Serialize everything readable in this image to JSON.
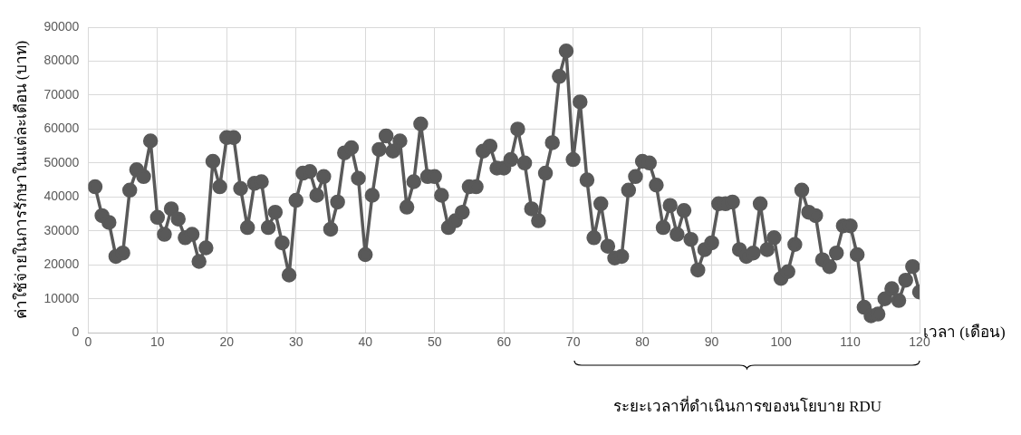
{
  "chart_data": {
    "type": "line",
    "xlabel": "เวลา (เดือน)",
    "ylabel": "ค่าใช้จ่ายในการรักษาในแต่ละเดือน (บาท)",
    "x": [
      1,
      2,
      3,
      4,
      5,
      6,
      7,
      8,
      9,
      10,
      11,
      12,
      13,
      14,
      15,
      16,
      17,
      18,
      19,
      20,
      21,
      22,
      23,
      24,
      25,
      26,
      27,
      28,
      29,
      30,
      31,
      32,
      33,
      34,
      35,
      36,
      37,
      38,
      39,
      40,
      41,
      42,
      43,
      44,
      45,
      46,
      47,
      48,
      49,
      50,
      51,
      52,
      53,
      54,
      55,
      56,
      57,
      58,
      59,
      60,
      61,
      62,
      63,
      64,
      65,
      66,
      67,
      68,
      69,
      70,
      71,
      72,
      73,
      74,
      75,
      76,
      77,
      78,
      79,
      80,
      81,
      82,
      83,
      84,
      85,
      86,
      87,
      88,
      89,
      90,
      91,
      92,
      93,
      94,
      95,
      96,
      97,
      98,
      99,
      100,
      101,
      102,
      103,
      104,
      105,
      106,
      107,
      108,
      109,
      110,
      111,
      112,
      113,
      114,
      115,
      116,
      117,
      118,
      119,
      120
    ],
    "series": [
      {
        "color": "#595959",
        "values": [
          43000,
          34500,
          32500,
          22500,
          23500,
          42000,
          48000,
          46000,
          56500,
          34000,
          29000,
          36500,
          33500,
          28000,
          29000,
          21000,
          25000,
          50500,
          43000,
          57500,
          57500,
          42500,
          31000,
          44000,
          44500,
          31000,
          35500,
          26500,
          17000,
          39000,
          47000,
          47500,
          40500,
          46000,
          30500,
          38500,
          53000,
          54500,
          45500,
          23000,
          40500,
          54000,
          58000,
          53500,
          56500,
          37000,
          44500,
          61500,
          46000,
          46000,
          40500,
          31000,
          33000,
          35500,
          43000,
          43000,
          53500,
          55000,
          48500,
          48500,
          51000,
          60000,
          50000,
          36500,
          33000,
          47000,
          56000,
          75500,
          83000,
          51000,
          68000,
          45000,
          28000,
          38000,
          25500,
          22000,
          22500,
          42000,
          46000,
          50500,
          50000,
          43500,
          31000,
          37500,
          29000,
          36000,
          27500,
          18500,
          24500,
          26500,
          38000,
          38000,
          38500,
          24500,
          22500,
          23500,
          38000,
          24500,
          28000,
          16000,
          18000,
          26000,
          42000,
          35500,
          34500,
          21500,
          19500,
          23500,
          31500,
          31500,
          23000,
          7500,
          5000,
          5500,
          10000,
          13000,
          9500,
          15500,
          19500,
          12000
        ]
      }
    ],
    "xlim": [
      0,
      120
    ],
    "xticks": [
      0,
      10,
      20,
      30,
      40,
      50,
      60,
      70,
      80,
      90,
      100,
      110,
      120
    ],
    "ylim": [
      0,
      90000
    ],
    "yticks": [
      0,
      10000,
      20000,
      30000,
      40000,
      50000,
      60000,
      70000,
      80000,
      90000
    ],
    "annotations": [
      "ระยะเวลาที่ดำเนินการของนโยบาย RDU"
    ],
    "grid": true,
    "legend": false,
    "marker": "circle",
    "line_style": "solid"
  }
}
